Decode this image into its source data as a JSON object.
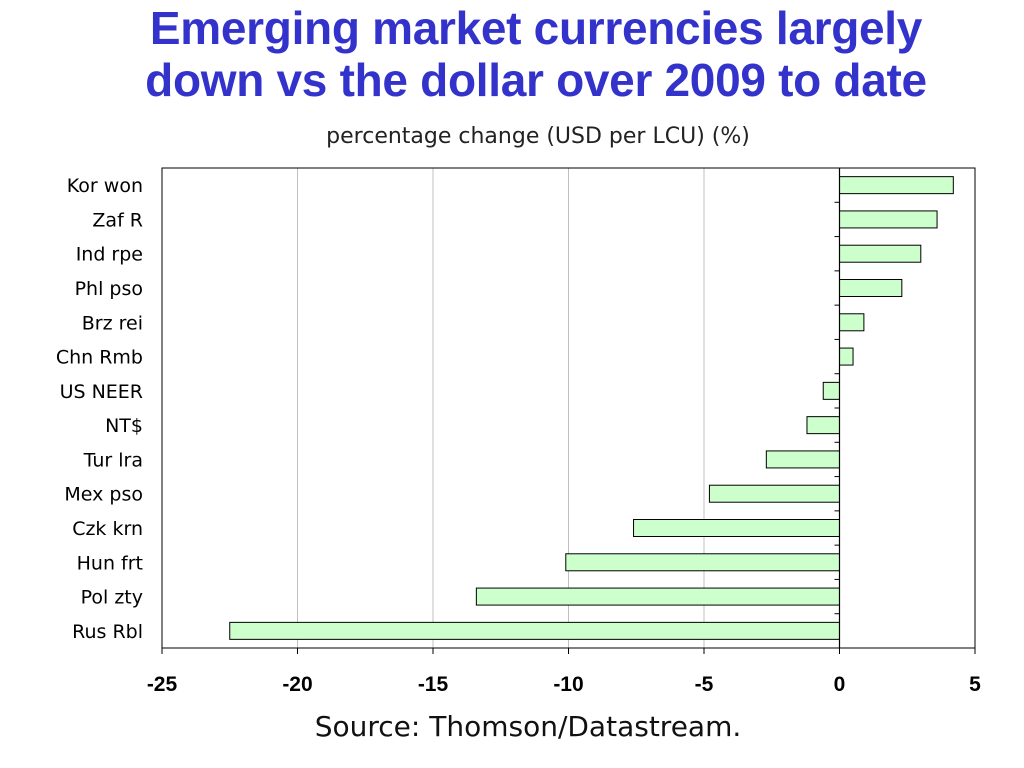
{
  "colors": {
    "title": "#3333cc",
    "bar_fill": "#ccffcc",
    "bar_stroke": "#000000",
    "grid": "#c0c0c0"
  },
  "chart_data": {
    "type": "bar",
    "orientation": "horizontal",
    "title": [
      "Emerging market currencies largely",
      "down vs the dollar over 2009 to date"
    ],
    "subtitle": "percentage change (USD per LCU) (%)",
    "source": "Source: Thomson/Datastream.",
    "categories": [
      "Kor won",
      "Zaf R",
      "Ind rpe",
      "Phl pso",
      "Brz rei",
      "Chn Rmb",
      "US NEER",
      "NT$",
      "Tur lra",
      "Mex pso",
      "Czk krn",
      "Hun frt",
      "Pol zty",
      "Rus Rbl"
    ],
    "values": [
      4.2,
      3.6,
      3.0,
      2.3,
      0.9,
      0.5,
      -0.6,
      -1.2,
      -2.7,
      -4.8,
      -7.6,
      -10.1,
      -13.4,
      -22.5
    ],
    "xlim": [
      -25,
      5
    ],
    "xticks": [
      "-25",
      "-20",
      "-15",
      "-10",
      "-5",
      "0",
      "5"
    ],
    "grid": true,
    "legend": "none"
  }
}
